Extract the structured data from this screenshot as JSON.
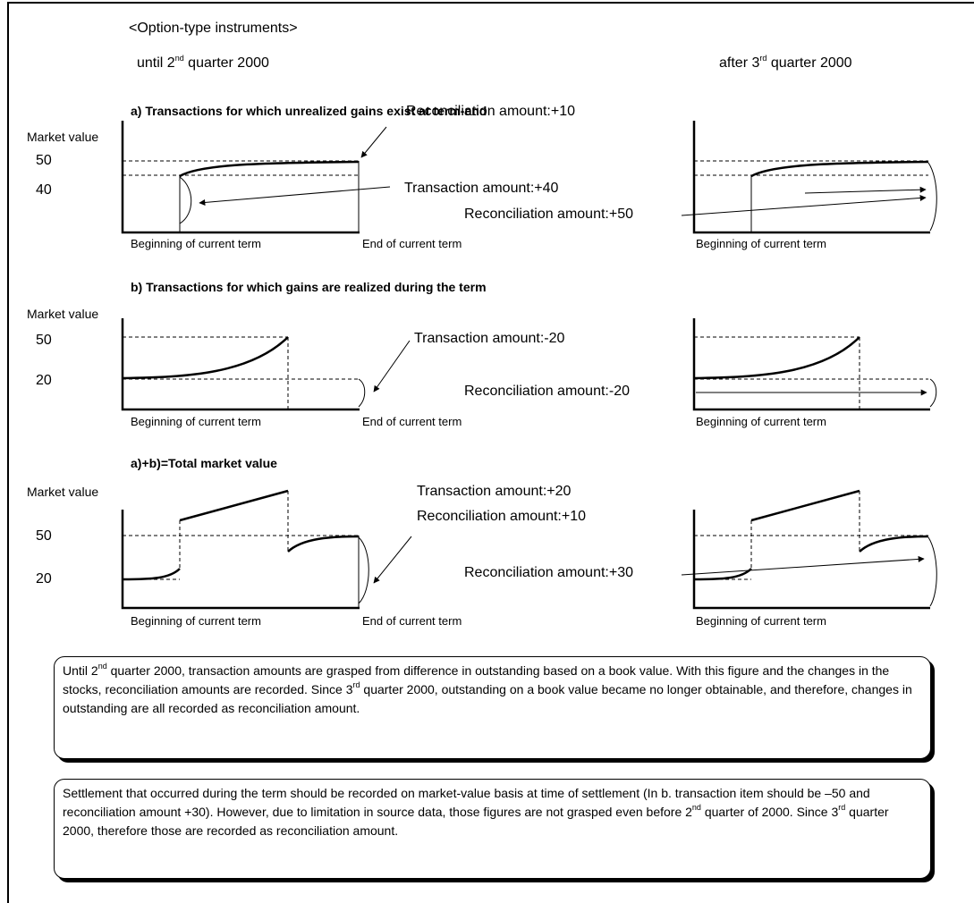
{
  "heading": "<Option-type instruments>",
  "periods": {
    "left": {
      "pre": "until 2",
      "sup": "nd",
      "post": " quarter 2000"
    },
    "right": {
      "pre": "after 3",
      "sup": "rd",
      "post": " quarter 2000"
    }
  },
  "sections": [
    {
      "title": "a) Transactions for which unrealized gains exist at term-end",
      "y_label": "Market value",
      "y_ticks": [
        "50",
        "40"
      ],
      "labels": {
        "reconciliation_left": "Reconciliation amount:+10",
        "transaction_left": "Transaction amount:+40",
        "reconciliation_right": "Reconciliation amount:+50"
      }
    },
    {
      "title": "b)  Transactions for which gains are realized during the term",
      "y_label": "Market value",
      "y_ticks": [
        "50",
        "20"
      ],
      "labels": {
        "transaction_left": "Transaction amount:-20",
        "reconciliation_right": "Reconciliation amount:-20"
      }
    },
    {
      "title": "a)+b)=Total market value",
      "y_label": "Market value",
      "y_ticks": [
        "50",
        "20"
      ],
      "labels": {
        "transaction_left": "Transaction amount:+20",
        "reconciliation_left": "Reconciliation amount:+10",
        "reconciliation_right": "Reconciliation amount:+30"
      }
    }
  ],
  "axis_labels": {
    "beginning": "Beginning of current term",
    "end": "End of current term"
  },
  "notes": {
    "note1": {
      "p1": "Until 2",
      "s1": "nd",
      "p2": " quarter 2000, transaction amounts are grasped from difference in outstanding based on a book value.  With this figure and the changes in the stocks, reconciliation amounts are recorded.  Since  3",
      "s2": "rd",
      "p3": " quarter 2000, outstanding on a book value became no longer obtainable, and therefore, changes in outstanding are all recorded as reconciliation amount."
    },
    "note2": {
      "p1": "Settlement that occurred during the term should be recorded on market-value basis at time of settlement (In b. transaction item should be –50 and reconciliation amount +30).  However, due to limitation in source data, those figures are not grasped even before 2",
      "s1": "nd",
      "p2": " quarter of 2000.  Since 3",
      "s2": "rd",
      "p3": " quarter 2000, therefore those are recorded as reconciliation amount."
    }
  },
  "colors": {
    "ink": "#000000",
    "background": "#ffffff"
  }
}
